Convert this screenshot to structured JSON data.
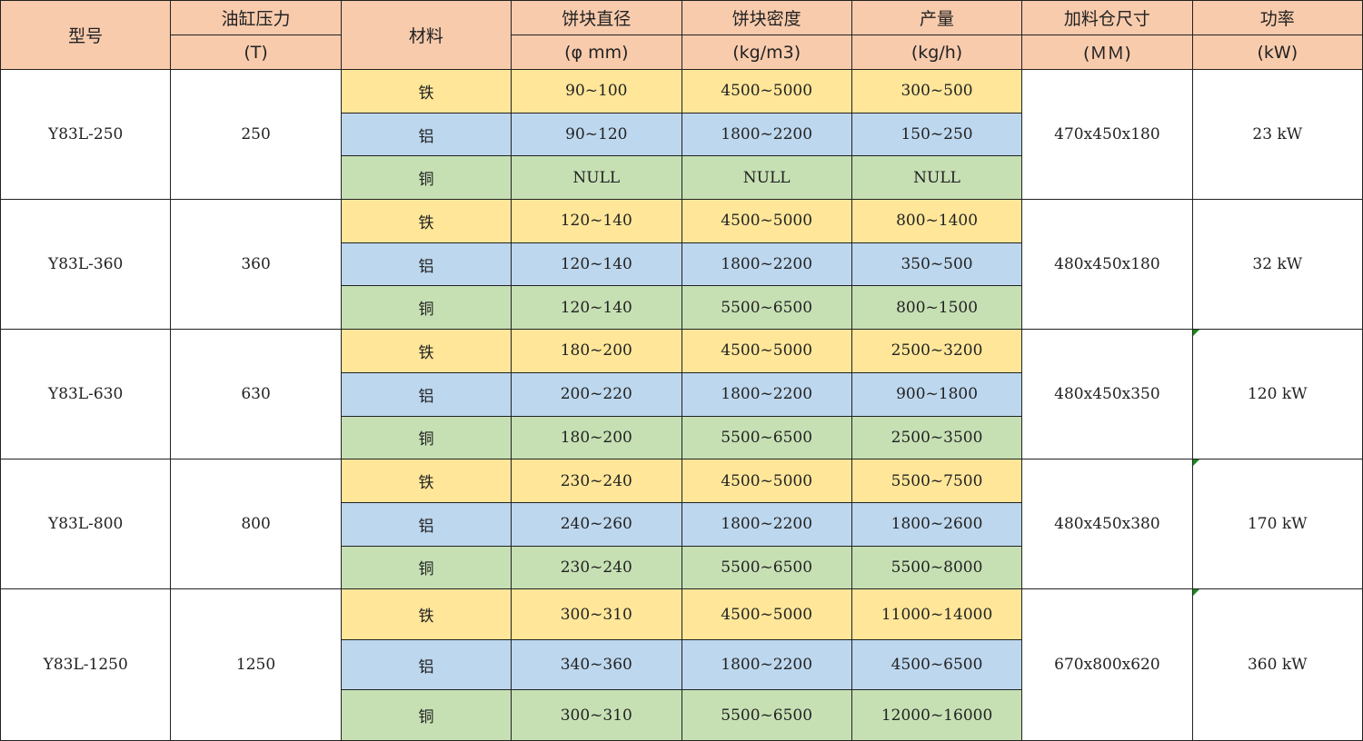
{
  "headers": {
    "model": "型号",
    "pressure": "油缸压力",
    "pressure_unit": "(T)",
    "material": "材料",
    "diameter": "饼块直径",
    "diameter_unit": "(φ  mm)",
    "density": "饼块密度",
    "density_unit": "(kg/m3)",
    "output": "产量",
    "output_unit": "(kg/h)",
    "hopper": "加料仓尺寸",
    "hopper_unit": "(ＭＭ)",
    "power": "功率",
    "power_unit": "(kW)"
  },
  "colors": {
    "header": "#F8CBAD",
    "iron": "#FFE699",
    "aluminum": "#BDD7EE",
    "copper": "#C6E0B4"
  },
  "models": [
    {
      "model": "Y83L-250",
      "pressure": "250",
      "hopper": "470x450x180",
      "power": "23 kW",
      "flag": false,
      "rows": [
        {
          "material": "铁",
          "diameter": "90~100",
          "density": "4500~5000",
          "output": "300~500"
        },
        {
          "material": "铝",
          "diameter": "90~120",
          "density": "1800~2200",
          "output": "150~250"
        },
        {
          "material": "铜",
          "diameter": "NULL",
          "density": "NULL",
          "output": "NULL"
        }
      ]
    },
    {
      "model": "Y83L-360",
      "pressure": "360",
      "hopper": "480x450x180",
      "power": "32 kW",
      "flag": false,
      "rows": [
        {
          "material": "铁",
          "diameter": "120~140",
          "density": "4500~5000",
          "output": "800~1400"
        },
        {
          "material": "铝",
          "diameter": "120~140",
          "density": "1800~2200",
          "output": "350~500"
        },
        {
          "material": "铜",
          "diameter": "120~140",
          "density": "5500~6500",
          "output": "800~1500"
        }
      ]
    },
    {
      "model": "Y83L-630",
      "pressure": "630",
      "hopper": "480x450x350",
      "power": "120 kW",
      "flag": true,
      "rows": [
        {
          "material": "铁",
          "diameter": "180~200",
          "density": "4500~5000",
          "output": "2500~3200"
        },
        {
          "material": "铝",
          "diameter": "200~220",
          "density": "1800~2200",
          "output": "900~1800"
        },
        {
          "material": "铜",
          "diameter": "180~200",
          "density": "5500~6500",
          "output": "2500~3500"
        }
      ]
    },
    {
      "model": "Y83L-800",
      "pressure": "800",
      "hopper": "480x450x380",
      "power": "170 kW",
      "flag": true,
      "rows": [
        {
          "material": "铁",
          "diameter": "230~240",
          "density": "4500~5000",
          "output": "5500~7500"
        },
        {
          "material": "铝",
          "diameter": "240~260",
          "density": "1800~2200",
          "output": "1800~2600"
        },
        {
          "material": "铜",
          "diameter": "230~240",
          "density": "5500~6500",
          "output": "5500~8000"
        }
      ]
    },
    {
      "model": "Y83L-1250",
      "pressure": "1250",
      "hopper": "670x800x620",
      "power": "360 kW",
      "flag": true,
      "rows": [
        {
          "material": "铁",
          "diameter": "300~310",
          "density": "4500~5000",
          "output": "11000~14000"
        },
        {
          "material": "铝",
          "diameter": "340~360",
          "density": "1800~2200",
          "output": "4500~6500"
        },
        {
          "material": "铜",
          "diameter": "300~310",
          "density": "5500~6500",
          "output": "12000~16000"
        }
      ]
    }
  ]
}
